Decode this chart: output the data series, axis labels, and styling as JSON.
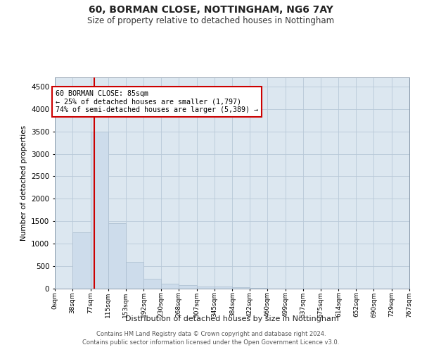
{
  "title": "60, BORMAN CLOSE, NOTTINGHAM, NG6 7AY",
  "subtitle": "Size of property relative to detached houses in Nottingham",
  "xlabel": "Distribution of detached houses by size in Nottingham",
  "ylabel": "Number of detached properties",
  "property_size": 85,
  "annotation_line1": "60 BORMAN CLOSE: 85sqm",
  "annotation_line2": "← 25% of detached houses are smaller (1,797)",
  "annotation_line3": "74% of semi-detached houses are larger (5,389) →",
  "footnote1": "Contains HM Land Registry data © Crown copyright and database right 2024.",
  "footnote2": "Contains public sector information licensed under the Open Government Licence v3.0.",
  "bar_color": "#cddceb",
  "bar_edge_color": "#aabdce",
  "red_line_color": "#cc0000",
  "annotation_box_facecolor": "#ffffff",
  "annotation_box_edgecolor": "#cc0000",
  "plot_bg_color": "#dce7f0",
  "background_color": "#ffffff",
  "grid_color": "#b8c8d8",
  "ylim": [
    0,
    4700
  ],
  "yticks": [
    0,
    500,
    1000,
    1500,
    2000,
    2500,
    3000,
    3500,
    4000,
    4500
  ],
  "bin_edges": [
    0,
    38,
    77,
    115,
    153,
    192,
    230,
    268,
    307,
    345,
    384,
    422,
    460,
    499,
    537,
    575,
    614,
    652,
    690,
    729,
    767
  ],
  "bin_labels": [
    "0sqm",
    "38sqm",
    "77sqm",
    "115sqm",
    "153sqm",
    "192sqm",
    "230sqm",
    "268sqm",
    "307sqm",
    "345sqm",
    "384sqm",
    "422sqm",
    "460sqm",
    "499sqm",
    "537sqm",
    "575sqm",
    "614sqm",
    "652sqm",
    "690sqm",
    "729sqm",
    "767sqm"
  ],
  "bar_heights": [
    5,
    1250,
    3500,
    1460,
    590,
    215,
    110,
    75,
    50,
    40,
    25,
    8,
    5,
    0,
    0,
    0,
    0,
    0,
    0,
    0
  ]
}
